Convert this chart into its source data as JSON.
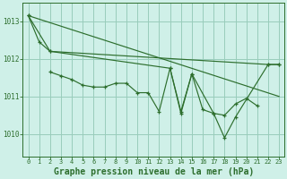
{
  "background_color": "#cff0e8",
  "grid_color": "#99ccbb",
  "line_color": "#2d6e2d",
  "xlabel": "Graphe pression niveau de la mer (hPa)",
  "xlabel_fontsize": 7,
  "xlim": [
    -0.5,
    23.5
  ],
  "ylim": [
    1009.4,
    1013.5
  ],
  "yticks": [
    1010,
    1011,
    1012,
    1013
  ],
  "xticks": [
    0,
    1,
    2,
    3,
    4,
    5,
    6,
    7,
    8,
    9,
    10,
    11,
    12,
    13,
    14,
    15,
    16,
    17,
    18,
    19,
    20,
    21,
    22,
    23
  ],
  "series_zigzag": {
    "x": [
      2,
      3,
      4,
      5,
      6,
      7,
      8,
      9,
      10,
      11,
      12,
      13,
      14,
      15,
      16,
      17,
      18,
      19,
      20,
      21
    ],
    "y": [
      1011.65,
      1011.55,
      1011.45,
      1011.3,
      1011.25,
      1011.25,
      1011.35,
      1011.35,
      1011.1,
      1011.1,
      1010.6,
      1011.75,
      1010.55,
      1011.6,
      1010.65,
      1010.55,
      1010.5,
      1010.8,
      1010.95,
      1010.75
    ]
  },
  "series_steep": {
    "x": [
      0,
      1,
      2,
      13,
      14,
      15,
      17,
      18,
      19,
      22,
      23
    ],
    "y": [
      1013.15,
      1012.45,
      1012.2,
      1011.75,
      1010.6,
      1011.6,
      1010.55,
      1009.9,
      1010.45,
      1011.85,
      1011.85
    ]
  },
  "series_mid": {
    "x": [
      0,
      2,
      22,
      23
    ],
    "y": [
      1013.15,
      1012.2,
      1011.85,
      1011.85
    ]
  },
  "series_diagonal": {
    "x": [
      0,
      23
    ],
    "y": [
      1013.15,
      1011.0
    ]
  }
}
